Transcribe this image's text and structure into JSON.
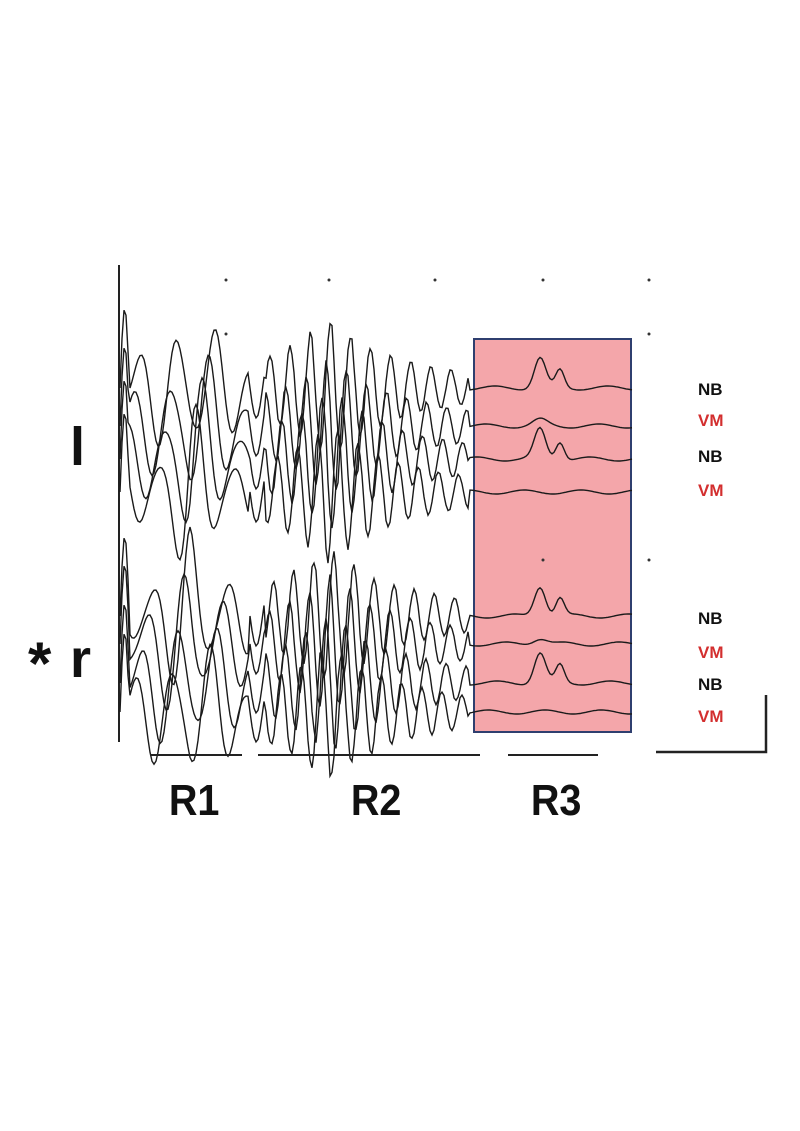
{
  "side_labels": {
    "left": "l",
    "right_marker": "*",
    "right": "r"
  },
  "trace_labels": {
    "left_group": [
      "NB",
      "VM",
      "NB",
      "VM"
    ],
    "right_group": [
      "NB",
      "VM",
      "NB",
      "VM"
    ]
  },
  "regions": [
    "R1",
    "R2",
    "R3"
  ],
  "colors": {
    "trace": "#1a1a1a",
    "nb_label": "#111111",
    "vm_label": "#d32f2f",
    "highlight_fill": "#f4a6aa",
    "highlight_border": "#2f3f6f"
  },
  "highlighted_region": "R3"
}
